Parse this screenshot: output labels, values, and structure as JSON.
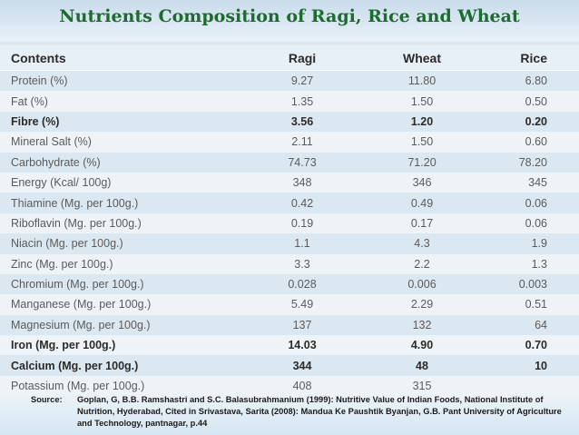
{
  "title": "Nutrients Composition of Ragi, Rice and Wheat",
  "table": {
    "headers": {
      "contents": "Contents",
      "ragi": "Ragi",
      "wheat": "Wheat",
      "rice": "Rice"
    },
    "rows": [
      {
        "name": "Protein (%)",
        "ragi": "9.27",
        "wheat": "11.80",
        "rice": "6.80",
        "bold": false
      },
      {
        "name": "Fat (%)",
        "ragi": "1.35",
        "wheat": "1.50",
        "rice": "0.50",
        "bold": false
      },
      {
        "name": "Fibre (%)",
        "ragi": "3.56",
        "wheat": "1.20",
        "rice": "0.20",
        "bold": true
      },
      {
        "name": "Mineral Salt (%)",
        "ragi": "2.11",
        "wheat": "1.50",
        "rice": "0.60",
        "bold": false
      },
      {
        "name": "Carbohydrate (%)",
        "ragi": "74.73",
        "wheat": "71.20",
        "rice": "78.20",
        "bold": false
      },
      {
        "name": "Energy (Kcal/ 100g)",
        "ragi": "348",
        "wheat": "346",
        "rice": "345",
        "bold": false
      },
      {
        "name": "Thiamine (Mg. per 100g.)",
        "ragi": "0.42",
        "wheat": "0.49",
        "rice": "0.06",
        "bold": false
      },
      {
        "name": "Riboflavin (Mg. per 100g.)",
        "ragi": "0.19",
        "wheat": "0.17",
        "rice": "0.06",
        "bold": false
      },
      {
        "name": "Niacin (Mg. per 100g.)",
        "ragi": "1.1",
        "wheat": "4.3",
        "rice": "1.9",
        "bold": false
      },
      {
        "name": "Zinc (Mg. per 100g.)",
        "ragi": "3.3",
        "wheat": "2.2",
        "rice": "1.3",
        "bold": false
      },
      {
        "name": "Chromium  (Mg. per 100g.)",
        "ragi": "0.028",
        "wheat": "0.006",
        "rice": "0.003",
        "bold": false
      },
      {
        "name": "Manganese  (Mg. per 100g.)",
        "ragi": "5.49",
        "wheat": "2.29",
        "rice": "0.51",
        "bold": false
      },
      {
        "name": "Magnesium  (Mg. per 100g.)",
        "ragi": "137",
        "wheat": "132",
        "rice": "64",
        "bold": false
      },
      {
        "name": "Iron  (Mg. per 100g.)",
        "ragi": "14.03",
        "wheat": "4.90",
        "rice": "0.70",
        "bold": true
      },
      {
        "name": "Calcium (Mg. per 100g.)",
        "ragi": "344",
        "wheat": "48",
        "rice": "10",
        "bold": true
      },
      {
        "name": "Potassium (Mg. per 100g.)",
        "ragi": "408",
        "wheat": "315",
        "rice": "",
        "bold": false
      }
    ]
  },
  "source": {
    "label": "Source:",
    "text": "Goplan, G, B.B. Ramshastri and S.C.  Balasubrahmanium (1999): Nutritive Value of Indian Foods, National Institute of Nutrition, Hyderabad, Cited in  Srivastava, Sarita (2008): Mandua Ke Paushtik Byanjan, G.B. Pant University of Agriculture and Technology, pantnagar, p.44"
  }
}
